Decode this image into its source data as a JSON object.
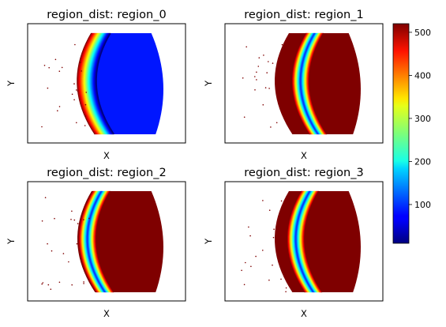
{
  "chart_data": {
    "type": "scatter",
    "colorscale": "jet",
    "colorbar": {
      "min": 10,
      "max": 520,
      "ticks": [
        100,
        200,
        300,
        400,
        500
      ]
    },
    "panels": [
      {
        "title": "region_dist: region_0",
        "xlabel": "X",
        "ylabel": "Y",
        "band_center": 0.0,
        "band_color_side": "outer"
      },
      {
        "title": "region_dist: region_1",
        "xlabel": "X",
        "ylabel": "Y",
        "band_center": 0.1
      },
      {
        "title": "region_dist: region_2",
        "xlabel": "X",
        "ylabel": "Y",
        "band_center": 0.0
      },
      {
        "title": "region_dist: region_3",
        "xlabel": "X",
        "ylabel": "Y",
        "band_center": 0.07
      }
    ]
  }
}
